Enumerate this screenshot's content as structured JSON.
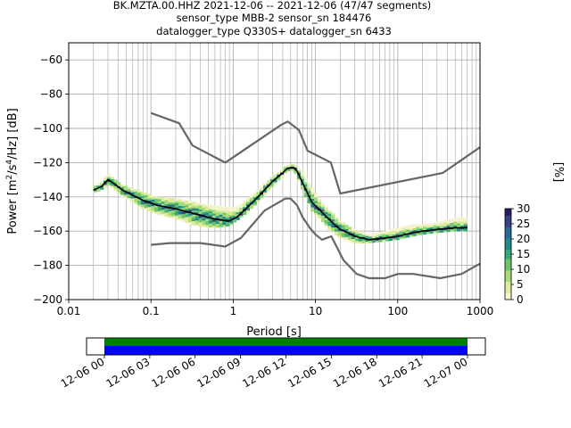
{
  "title": {
    "line1": "BK.MZTA.00.HHZ   2021-12-06 -- 2021-12-06  (47/47 segments)",
    "line2": "sensor_type MBB-2 sensor_sn 184476",
    "line3": "datalogger_type Q330S+ datalogger_sn 6433"
  },
  "chart_data": [
    {
      "type": "heatmap",
      "title": "BK.MZTA.00.HHZ   2021-12-06 -- 2021-12-06  (47/47 segments)",
      "xlabel": "Period [s]",
      "ylabel": "Power [m²/s⁴/Hz] [dB]",
      "xscale": "log",
      "xlim": [
        0.01,
        1000
      ],
      "ylim": [
        -200,
        -50
      ],
      "xticks": [
        0.01,
        0.1,
        1,
        10,
        100,
        1000
      ],
      "xtick_labels": [
        "0.01",
        "0.1",
        "1",
        "10",
        "100",
        "1000"
      ],
      "yticks": [
        -200,
        -180,
        -160,
        -140,
        -120,
        -100,
        -80,
        -60
      ],
      "ytick_labels": [
        "−200",
        "−180",
        "−160",
        "−140",
        "−120",
        "−100",
        "−80",
        "−60"
      ],
      "grid": true,
      "colorbar": {
        "label": "[%]",
        "ticks": [
          0,
          5,
          10,
          15,
          20,
          25,
          30
        ],
        "range": [
          0,
          30
        ]
      },
      "series": [
        {
          "name": "",
          "role": "noise model high",
          "color": "#666666",
          "x": [
            0.1,
            0.22,
            0.32,
            0.8,
            3.8,
            4.6,
            6.3,
            8,
            15.4,
            20,
            354,
            1000
          ],
          "y": [
            -91,
            -97,
            -110,
            -120,
            -98,
            -96,
            -101,
            -113,
            -120,
            -138,
            -126,
            -111
          ]
        },
        {
          "name": "",
          "role": "noise model low",
          "color": "#666666",
          "x": [
            0.1,
            0.17,
            0.4,
            0.8,
            1.24,
            2.4,
            4.3,
            5,
            6,
            7,
            8.5,
            10,
            12,
            15.6,
            21.9,
            31.6,
            45,
            70,
            101,
            154,
            328,
            600,
            1000
          ],
          "y": [
            -168,
            -167,
            -167,
            -169,
            -164,
            -148,
            -141,
            -141,
            -145,
            -152,
            -158,
            -162,
            -165,
            -163,
            -177,
            -185,
            -187.5,
            -187.5,
            -185,
            -185,
            -187.5,
            -185,
            -179
          ]
        },
        {
          "name": "",
          "role": "mode",
          "color": "#000000",
          "x": [
            0.02,
            0.025,
            0.03,
            0.035,
            0.045,
            0.06,
            0.08,
            0.12,
            0.2,
            0.35,
            0.6,
            0.9,
            1.1,
            1.5,
            2,
            3,
            4,
            4.5,
            5,
            5.5,
            6,
            7,
            9,
            12,
            16,
            20,
            25,
            30,
            45,
            70,
            100,
            150,
            200,
            300,
            500,
            700
          ],
          "y": [
            -136,
            -134,
            -130,
            -132,
            -136,
            -139,
            -142,
            -145,
            -147,
            -150,
            -153,
            -154,
            -152,
            -146,
            -140,
            -131,
            -126,
            -123.5,
            -123,
            -123,
            -125,
            -132,
            -143,
            -149,
            -155,
            -159,
            -161,
            -163,
            -165,
            -164,
            -163,
            -161,
            -160,
            -159,
            -158,
            -158
          ]
        }
      ],
      "pdf_band": {
        "x": [
          0.02,
          0.025,
          0.03,
          0.035,
          0.045,
          0.06,
          0.08,
          0.12,
          0.2,
          0.35,
          0.6,
          0.9,
          1.1,
          1.5,
          2,
          3,
          4,
          4.5,
          5,
          5.5,
          6,
          7,
          9,
          12,
          16,
          20,
          25,
          30,
          45,
          70,
          100,
          150,
          200,
          300,
          500,
          700
        ],
        "low": [
          -138,
          -136,
          -133,
          -135,
          -140,
          -143,
          -147,
          -150,
          -153,
          -157,
          -158,
          -157,
          -154,
          -149,
          -143,
          -134,
          -128,
          -125,
          -125,
          -125,
          -128,
          -136,
          -148,
          -154,
          -161,
          -164,
          -166,
          -167,
          -167,
          -166,
          -165,
          -163,
          -162,
          -161,
          -160,
          -160
        ],
        "high": [
          -134,
          -131,
          -126,
          -129,
          -133,
          -135,
          -137,
          -140,
          -141,
          -143,
          -145,
          -146,
          -146,
          -141,
          -136,
          -128,
          -124,
          -121.5,
          -121,
          -121,
          -122,
          -126,
          -134,
          -143,
          -149,
          -154,
          -157,
          -159,
          -162,
          -160,
          -158,
          -156,
          -156,
          -155,
          -152,
          -152
        ]
      }
    },
    {
      "type": "bar",
      "role": "data coverage timeline",
      "xlim": [
        "2021-12-06 00:00",
        "2021-12-07 00:00"
      ],
      "xtick_labels": [
        "12-06 00",
        "12-06 03",
        "12-06 06",
        "12-06 09",
        "12-06 12",
        "12-06 15",
        "12-06 18",
        "12-06 21",
        "12-07 00"
      ],
      "series": [
        {
          "name": "",
          "color": "#008000",
          "start": "2021-12-06 00:00",
          "end": "2021-12-07 00:00"
        },
        {
          "name": "",
          "color": "#0000ff",
          "start": "2021-12-06 00:00",
          "end": "2021-12-07 00:00"
        }
      ]
    }
  ]
}
